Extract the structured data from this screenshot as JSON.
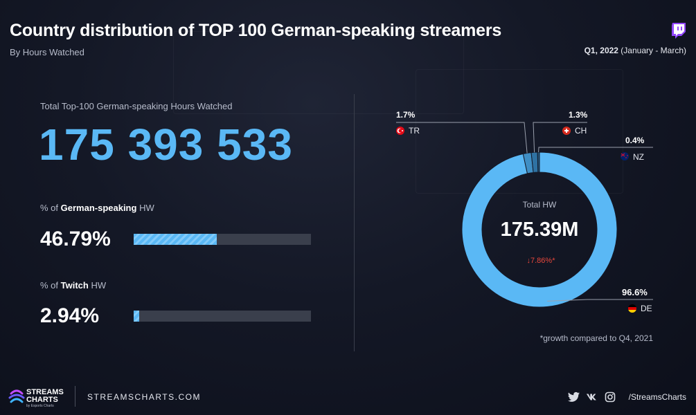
{
  "header": {
    "title": "Country distribution of TOP 100 German-speaking streamers",
    "subtitle": "By Hours Watched",
    "period_bold": "Q1, 2022",
    "period_rest": " (January - March)"
  },
  "left": {
    "total_label": "Total Top-100 German-speaking Hours Watched",
    "total_value": "175 393 533",
    "metrics": [
      {
        "label_prefix": "% of ",
        "label_bold": "German-speaking",
        "label_suffix": " HW",
        "value": "46.79%",
        "fraction": 0.4679
      },
      {
        "label_prefix": "% of ",
        "label_bold": "Twitch",
        "label_suffix": " HW",
        "value": "2.94%",
        "fraction": 0.0294
      }
    ]
  },
  "chart_data": {
    "type": "pie",
    "title": "Country distribution of TOP 100 German-speaking streamers",
    "center_label": "Total HW",
    "center_value": "175.39M",
    "center_change": "↓7.86%*",
    "slices": [
      {
        "label": "DE",
        "value": 96.6,
        "value_label": "96.6%",
        "color": "#5ab8f5"
      },
      {
        "label": "TR",
        "value": 1.7,
        "value_label": "1.7%",
        "color": "#3f8ec4"
      },
      {
        "label": "CH",
        "value": 1.3,
        "value_label": "1.3%",
        "color": "#2f72a3"
      },
      {
        "label": "NZ",
        "value": 0.4,
        "value_label": "0.4%",
        "color": "#25597f"
      }
    ],
    "note": "*growth compared to Q4, 2021"
  },
  "colors": {
    "accent": "#5ab8f5",
    "negative": "#e8473c",
    "track": "#3a3f4c"
  },
  "footer": {
    "logo_line1": "STREAMS",
    "logo_line2": "CHARTS",
    "logo_sub": "by Esports Charts",
    "site": "STREAMSCHARTS.COM",
    "handle": "/StreamsCharts"
  }
}
